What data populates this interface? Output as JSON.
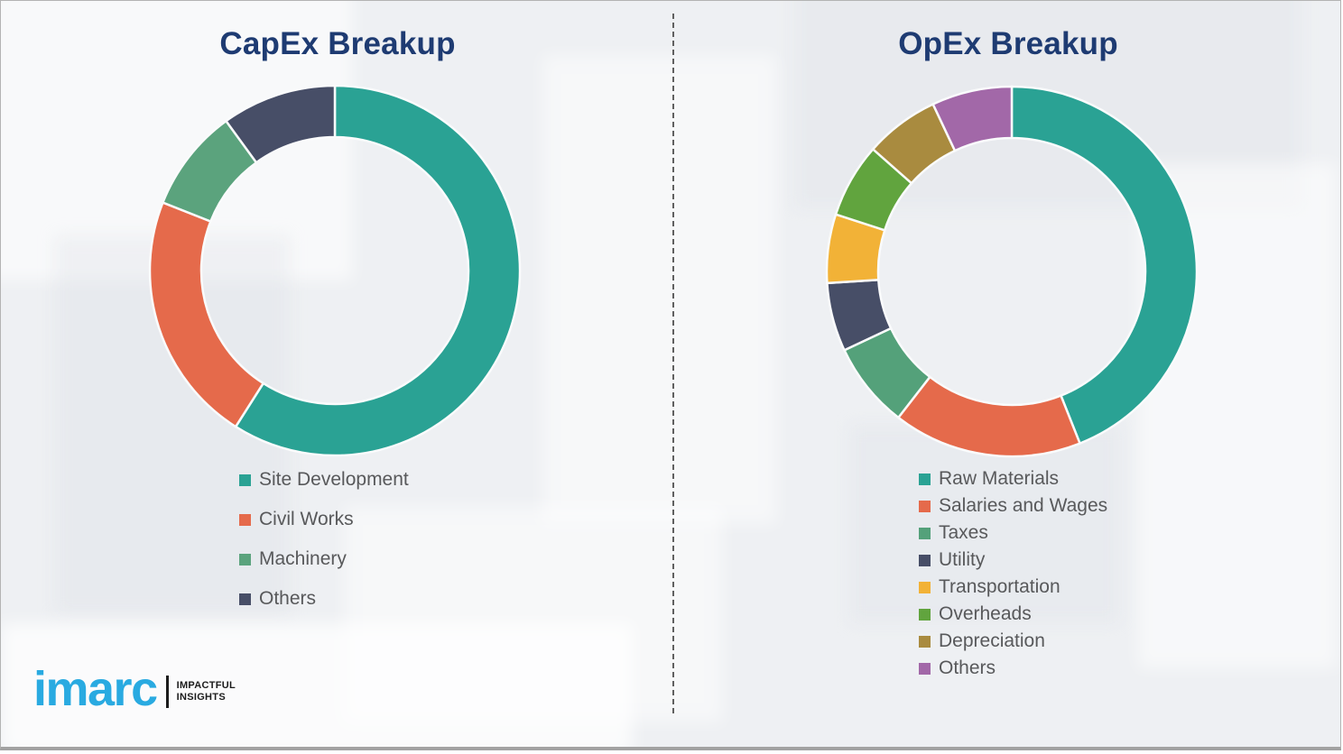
{
  "brand": {
    "logo_text": "imarc",
    "tagline_line1": "IMPACTFUL",
    "tagline_line2": "INSIGHTS",
    "logo_color": "#29aae1"
  },
  "divider_style": "vertical-dashed",
  "title_color": "#1e3b72",
  "chart_data": [
    {
      "type": "pie",
      "variant": "donut",
      "title": "CapEx Breakup",
      "legend_position": "below-left",
      "start_angle_deg": 0,
      "direction": "clockwise",
      "donut_hole_ratio": 0.72,
      "units": "percent (estimated from arc angles; no data labels shown)",
      "segments": [
        {
          "label": "Site Development",
          "value_pct": 59,
          "color": "#2aa294"
        },
        {
          "label": "Civil Works",
          "value_pct": 22,
          "color": "#e56a4b"
        },
        {
          "label": "Machinery",
          "value_pct": 9,
          "color": "#5ba37d"
        },
        {
          "label": "Others",
          "value_pct": 10,
          "color": "#474e67"
        }
      ]
    },
    {
      "type": "pie",
      "variant": "donut",
      "title": "OpEx Breakup",
      "legend_position": "below-left",
      "start_angle_deg": 0,
      "direction": "clockwise",
      "donut_hole_ratio": 0.72,
      "units": "percent (estimated from arc angles; no data labels shown)",
      "segments": [
        {
          "label": "Raw Materials",
          "value_pct": 44,
          "color": "#2aa294"
        },
        {
          "label": "Salaries and Wages",
          "value_pct": 16.5,
          "color": "#e56a4b"
        },
        {
          "label": "Taxes",
          "value_pct": 7.5,
          "color": "#54a17a"
        },
        {
          "label": "Utility",
          "value_pct": 6,
          "color": "#474e67"
        },
        {
          "label": "Transportation",
          "value_pct": 6,
          "color": "#f2b237"
        },
        {
          "label": "Overheads",
          "value_pct": 6.5,
          "color": "#61a43e"
        },
        {
          "label": "Depreciation",
          "value_pct": 6.5,
          "color": "#a98b3f"
        },
        {
          "label": "Others",
          "value_pct": 7,
          "color": "#a268a8"
        }
      ]
    }
  ]
}
